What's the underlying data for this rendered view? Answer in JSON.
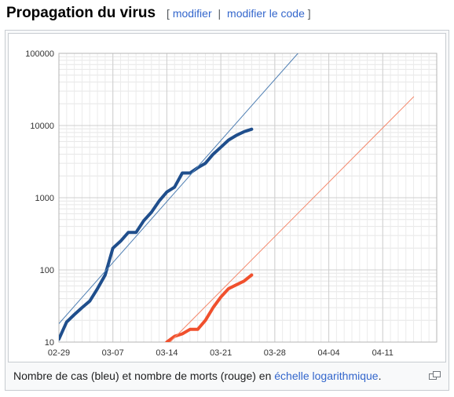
{
  "heading": {
    "title": "Propagation du virus",
    "bracket_open": "[",
    "edit_label": "modifier",
    "separator": "|",
    "edit_code_label": "modifier le code",
    "bracket_close": "]"
  },
  "caption": {
    "text_before": "Nombre de cas (bleu) et nombre de morts (rouge) en ",
    "link": "échelle logarithmique",
    "text_after": "."
  },
  "icons": {
    "magnify": "magnify-clip-icon"
  },
  "colors": {
    "cases": "#1f4e8c",
    "deaths": "#f0502d",
    "cases_trend": "#4f7fb3",
    "deaths_trend": "#f4896d",
    "link": "#3366cc"
  },
  "chart_data": {
    "type": "line",
    "title": "",
    "xlabel": "",
    "ylabel": "",
    "yscale": "log",
    "ylim": [
      10,
      100000
    ],
    "x_ticks": [
      "02-29",
      "03-07",
      "03-14",
      "03-21",
      "03-28",
      "04-04",
      "04-11"
    ],
    "y_ticks": [
      "10",
      "100",
      "1000",
      "10000",
      "100000"
    ],
    "grid": true,
    "series": [
      {
        "color": "#1f4e8c",
        "points": [
          [
            "02-29",
            11
          ],
          [
            "03-01",
            19
          ],
          [
            "03-02",
            24
          ],
          [
            "03-03",
            30
          ],
          [
            "03-04",
            37
          ],
          [
            "03-05",
            55
          ],
          [
            "03-06",
            85
          ],
          [
            "03-07",
            200
          ],
          [
            "03-08",
            250
          ],
          [
            "03-09",
            330
          ],
          [
            "03-10",
            330
          ],
          [
            "03-11",
            480
          ],
          [
            "03-12",
            630
          ],
          [
            "03-13",
            900
          ],
          [
            "03-14",
            1200
          ],
          [
            "03-15",
            1400
          ],
          [
            "03-16",
            2200
          ],
          [
            "03-17",
            2200
          ],
          [
            "03-18",
            2600
          ],
          [
            "03-19",
            3000
          ],
          [
            "03-20",
            4000
          ],
          [
            "03-21",
            5000
          ],
          [
            "03-22",
            6300
          ],
          [
            "03-23",
            7300
          ],
          [
            "03-24",
            8200
          ],
          [
            "03-25",
            8900
          ]
        ]
      },
      {
        "color": "#f0502d",
        "points": [
          [
            "03-14",
            10
          ],
          [
            "03-15",
            12
          ],
          [
            "03-16",
            13
          ],
          [
            "03-17",
            15
          ],
          [
            "03-18",
            15
          ],
          [
            "03-19",
            20
          ],
          [
            "03-20",
            30
          ],
          [
            "03-21",
            42
          ],
          [
            "03-22",
            55
          ],
          [
            "03-23",
            62
          ],
          [
            "03-24",
            70
          ],
          [
            "03-25",
            85
          ]
        ]
      },
      {
        "color": "#4f7fb3",
        "style": "trend",
        "points": [
          [
            "02-29",
            18
          ],
          [
            "03-31",
            100000
          ]
        ]
      },
      {
        "color": "#f4896d",
        "style": "trend",
        "points": [
          [
            "03-14",
            9
          ],
          [
            "04-15",
            25000
          ]
        ]
      }
    ]
  }
}
